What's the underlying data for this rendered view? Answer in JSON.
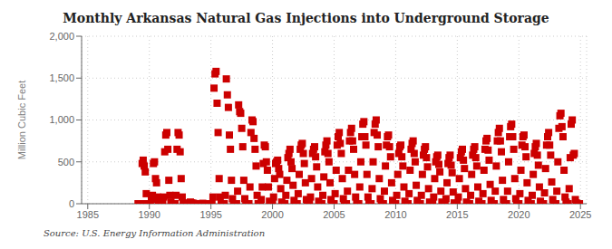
{
  "chart_data": {
    "type": "scatter",
    "title": "Monthly Arkansas Natural Gas Injections into Underground Storage",
    "y_label": "Million Cubic Feet",
    "annotations": [
      "Source: U.S. Energy Information Administration"
    ],
    "color": "#cc0000",
    "marker": "square",
    "grid": true,
    "xlim": [
      1984.5,
      2025.5
    ],
    "xticks": [
      1985,
      1990,
      1995,
      2000,
      2005,
      2010,
      2015,
      2020,
      2025
    ],
    "ylim": [
      0,
      2000
    ],
    "yticks": [
      0,
      500,
      {
        "value": 1000,
        "label": "1,000"
      },
      {
        "value": 1500,
        "label": "1,500"
      },
      {
        "value": 2000,
        "label": "2,000"
      }
    ],
    "x": [
      1989.083,
      1989.167,
      1989.25,
      1989.333,
      1989.417,
      1989.5,
      1989.583,
      1989.667,
      1989.75,
      1989.833,
      1989.917,
      1990.0,
      1990.083,
      1990.167,
      1990.25,
      1990.333,
      1990.417,
      1990.5,
      1990.583,
      1990.667,
      1990.75,
      1990.833,
      1990.917,
      1991.0,
      1991.083,
      1991.167,
      1991.25,
      1991.333,
      1991.417,
      1991.5,
      1991.583,
      1991.667,
      1991.75,
      1991.833,
      1991.917,
      1992.0,
      1992.083,
      1992.167,
      1992.25,
      1992.333,
      1992.417,
      1992.5,
      1992.583,
      1992.667,
      1992.75,
      1992.833,
      1992.917,
      1993.0,
      1993.083,
      1993.167,
      1993.25,
      1993.333,
      1993.417,
      1993.5,
      1993.583,
      1993.667,
      1993.75,
      1993.833,
      1993.917,
      1994.0,
      1994.083,
      1994.167,
      1994.25,
      1994.333,
      1994.417,
      1994.5,
      1994.583,
      1994.667,
      1994.75,
      1994.833,
      1994.917,
      1995.0,
      1995.083,
      1995.167,
      1995.25,
      1995.333,
      1995.417,
      1995.5,
      1995.583,
      1995.667,
      1995.75,
      1995.833,
      1995.917,
      1996.0,
      1996.083,
      1996.167,
      1996.25,
      1996.333,
      1996.417,
      1996.5,
      1996.583,
      1996.667,
      1996.75,
      1996.833,
      1996.917,
      1997.0,
      1997.083,
      1997.167,
      1997.25,
      1997.333,
      1997.417,
      1997.5,
      1997.583,
      1997.667,
      1997.75,
      1997.833,
      1997.917,
      1998.0,
      1998.083,
      1998.167,
      1998.25,
      1998.333,
      1998.417,
      1998.5,
      1998.583,
      1998.667,
      1998.75,
      1998.833,
      1998.917,
      1999.0,
      1999.083,
      1999.167,
      1999.25,
      1999.333,
      1999.417,
      1999.5,
      1999.583,
      1999.667,
      1999.75,
      1999.833,
      1999.917,
      2000.0,
      2000.083,
      2000.167,
      2000.25,
      2000.333,
      2000.417,
      2000.5,
      2000.583,
      2000.667,
      2000.75,
      2000.833,
      2000.917,
      2001.0,
      2001.083,
      2001.167,
      2001.25,
      2001.333,
      2001.417,
      2001.5,
      2001.583,
      2001.667,
      2001.75,
      2001.833,
      2001.917,
      2002.0,
      2002.083,
      2002.167,
      2002.25,
      2002.333,
      2002.417,
      2002.5,
      2002.583,
      2002.667,
      2002.75,
      2002.833,
      2002.917,
      2003.0,
      2003.083,
      2003.167,
      2003.25,
      2003.333,
      2003.417,
      2003.5,
      2003.583,
      2003.667,
      2003.75,
      2003.833,
      2003.917,
      2004.0,
      2004.083,
      2004.167,
      2004.25,
      2004.333,
      2004.417,
      2004.5,
      2004.583,
      2004.667,
      2004.75,
      2004.833,
      2004.917,
      2005.0,
      2005.083,
      2005.167,
      2005.25,
      2005.333,
      2005.417,
      2005.5,
      2005.583,
      2005.667,
      2005.75,
      2005.833,
      2005.917,
      2006.0,
      2006.083,
      2006.167,
      2006.25,
      2006.333,
      2006.417,
      2006.5,
      2006.583,
      2006.667,
      2006.75,
      2006.833,
      2006.917,
      2007.0,
      2007.083,
      2007.167,
      2007.25,
      2007.333,
      2007.417,
      2007.5,
      2007.583,
      2007.667,
      2007.75,
      2007.833,
      2007.917,
      2008.0,
      2008.083,
      2008.167,
      2008.25,
      2008.333,
      2008.417,
      2008.5,
      2008.583,
      2008.667,
      2008.75,
      2008.833,
      2008.917,
      2009.0,
      2009.083,
      2009.167,
      2009.25,
      2009.333,
      2009.417,
      2009.5,
      2009.583,
      2009.667,
      2009.75,
      2009.833,
      2009.917,
      2010.0,
      2010.083,
      2010.167,
      2010.25,
      2010.333,
      2010.417,
      2010.5,
      2010.583,
      2010.667,
      2010.75,
      2010.833,
      2010.917,
      2011.0,
      2011.083,
      2011.167,
      2011.25,
      2011.333,
      2011.417,
      2011.5,
      2011.583,
      2011.667,
      2011.75,
      2011.833,
      2011.917,
      2012.0,
      2012.083,
      2012.167,
      2012.25,
      2012.333,
      2012.417,
      2012.5,
      2012.583,
      2012.667,
      2012.75,
      2012.833,
      2012.917,
      2013.0,
      2013.083,
      2013.167,
      2013.25,
      2013.333,
      2013.417,
      2013.5,
      2013.583,
      2013.667,
      2013.75,
      2013.833,
      2013.917,
      2014.0,
      2014.083,
      2014.167,
      2014.25,
      2014.333,
      2014.417,
      2014.5,
      2014.583,
      2014.667,
      2014.75,
      2014.833,
      2014.917,
      2015.0,
      2015.083,
      2015.167,
      2015.25,
      2015.333,
      2015.417,
      2015.5,
      2015.583,
      2015.667,
      2015.75,
      2015.833,
      2015.917,
      2016.0,
      2016.083,
      2016.167,
      2016.25,
      2016.333,
      2016.417,
      2016.5,
      2016.583,
      2016.667,
      2016.75,
      2016.833,
      2016.917,
      2017.0,
      2017.083,
      2017.167,
      2017.25,
      2017.333,
      2017.417,
      2017.5,
      2017.583,
      2017.667,
      2017.75,
      2017.833,
      2017.917,
      2018.0,
      2018.083,
      2018.167,
      2018.25,
      2018.333,
      2018.417,
      2018.5,
      2018.583,
      2018.667,
      2018.75,
      2018.833,
      2018.917,
      2019.0,
      2019.083,
      2019.167,
      2019.25,
      2019.333,
      2019.417,
      2019.5,
      2019.583,
      2019.667,
      2019.75,
      2019.833,
      2019.917,
      2020.0,
      2020.083,
      2020.167,
      2020.25,
      2020.333,
      2020.417,
      2020.5,
      2020.583,
      2020.667,
      2020.75,
      2020.833,
      2020.917,
      2021.0,
      2021.083,
      2021.167,
      2021.25,
      2021.333,
      2021.417,
      2021.5,
      2021.583,
      2021.667,
      2021.75,
      2021.833,
      2021.917,
      2022.0,
      2022.083,
      2022.167,
      2022.25,
      2022.333,
      2022.417,
      2022.5,
      2022.583,
      2022.667,
      2022.75,
      2022.833,
      2022.917,
      2023.0,
      2023.083,
      2023.167,
      2023.25,
      2023.333,
      2023.417,
      2023.5,
      2023.583,
      2023.667,
      2023.75,
      2023.833,
      2023.917,
      2024.0,
      2024.083,
      2024.167,
      2024.25,
      2024.333,
      2024.417,
      2024.5,
      2024.583,
      2024.667,
      2024.75,
      2024.833,
      2024.917
    ],
    "values": [
      0,
      0,
      0,
      0,
      480,
      520,
      450,
      380,
      120,
      0,
      0,
      0,
      0,
      50,
      100,
      480,
      500,
      300,
      250,
      80,
      30,
      0,
      0,
      0,
      0,
      80,
      620,
      820,
      850,
      650,
      280,
      100,
      20,
      0,
      0,
      0,
      0,
      100,
      650,
      850,
      820,
      620,
      300,
      80,
      10,
      0,
      0,
      0,
      0,
      0,
      0,
      20,
      10,
      5,
      5,
      0,
      0,
      0,
      0,
      0,
      0,
      0,
      0,
      5,
      0,
      0,
      0,
      0,
      0,
      0,
      0,
      0,
      0,
      80,
      1380,
      1550,
      1580,
      1200,
      850,
      300,
      80,
      0,
      0,
      0,
      0,
      100,
      1490,
      1300,
      1150,
      820,
      650,
      280,
      60,
      0,
      0,
      0,
      0,
      150,
      1180,
      1100,
      1080,
      900,
      680,
      280,
      60,
      0,
      0,
      0,
      0,
      200,
      850,
      1000,
      980,
      780,
      650,
      450,
      100,
      0,
      0,
      0,
      50,
      200,
      480,
      700,
      680,
      500,
      400,
      200,
      30,
      0,
      0,
      0,
      80,
      300,
      480,
      500,
      520,
      420,
      350,
      180,
      20,
      0,
      0,
      0,
      100,
      280,
      550,
      600,
      650,
      500,
      420,
      220,
      40,
      0,
      0,
      0,
      120,
      350,
      650,
      700,
      720,
      600,
      480,
      250,
      50,
      0,
      0,
      0,
      80,
      300,
      600,
      650,
      680,
      560,
      440,
      200,
      30,
      0,
      0,
      0,
      100,
      320,
      620,
      700,
      750,
      600,
      500,
      250,
      50,
      0,
      0,
      0,
      120,
      400,
      700,
      800,
      850,
      720,
      600,
      300,
      60,
      0,
      0,
      0,
      150,
      400,
      750,
      850,
      900,
      750,
      650,
      350,
      80,
      0,
      0,
      0,
      200,
      500,
      800,
      950,
      980,
      800,
      700,
      350,
      80,
      0,
      0,
      0,
      180,
      500,
      850,
      950,
      1000,
      820,
      680,
      300,
      60,
      0,
      0,
      0,
      150,
      450,
      700,
      800,
      820,
      680,
      560,
      250,
      40,
      0,
      0,
      0,
      100,
      350,
      600,
      680,
      700,
      560,
      450,
      200,
      30,
      0,
      0,
      0,
      120,
      400,
      650,
      720,
      750,
      600,
      500,
      220,
      40,
      0,
      0,
      0,
      100,
      350,
      580,
      650,
      680,
      550,
      440,
      180,
      20,
      0,
      0,
      0,
      80,
      300,
      500,
      560,
      580,
      470,
      380,
      150,
      20,
      0,
      0,
      0,
      60,
      250,
      480,
      550,
      580,
      460,
      370,
      140,
      10,
      0,
      0,
      0,
      80,
      300,
      550,
      620,
      650,
      520,
      420,
      180,
      20,
      0,
      0,
      0,
      100,
      350,
      580,
      650,
      680,
      550,
      450,
      200,
      30,
      0,
      0,
      0,
      120,
      400,
      650,
      750,
      780,
      640,
      520,
      230,
      40,
      0,
      0,
      0,
      150,
      450,
      750,
      850,
      900,
      750,
      620,
      280,
      50,
      0,
      0,
      0,
      150,
      500,
      800,
      920,
      950,
      800,
      650,
      300,
      60,
      0,
      0,
      0,
      120,
      400,
      700,
      800,
      820,
      680,
      560,
      250,
      40,
      0,
      0,
      0,
      100,
      350,
      600,
      680,
      720,
      580,
      460,
      200,
      30,
      0,
      0,
      0,
      130,
      420,
      700,
      800,
      850,
      700,
      580,
      260,
      50,
      0,
      0,
      0,
      150,
      500,
      900,
      1050,
      1080,
      920,
      800,
      400,
      80,
      20,
      0,
      0,
      180,
      550,
      950,
      1000,
      580,
      600,
      50,
      10,
      0,
      0,
      0
    ]
  }
}
